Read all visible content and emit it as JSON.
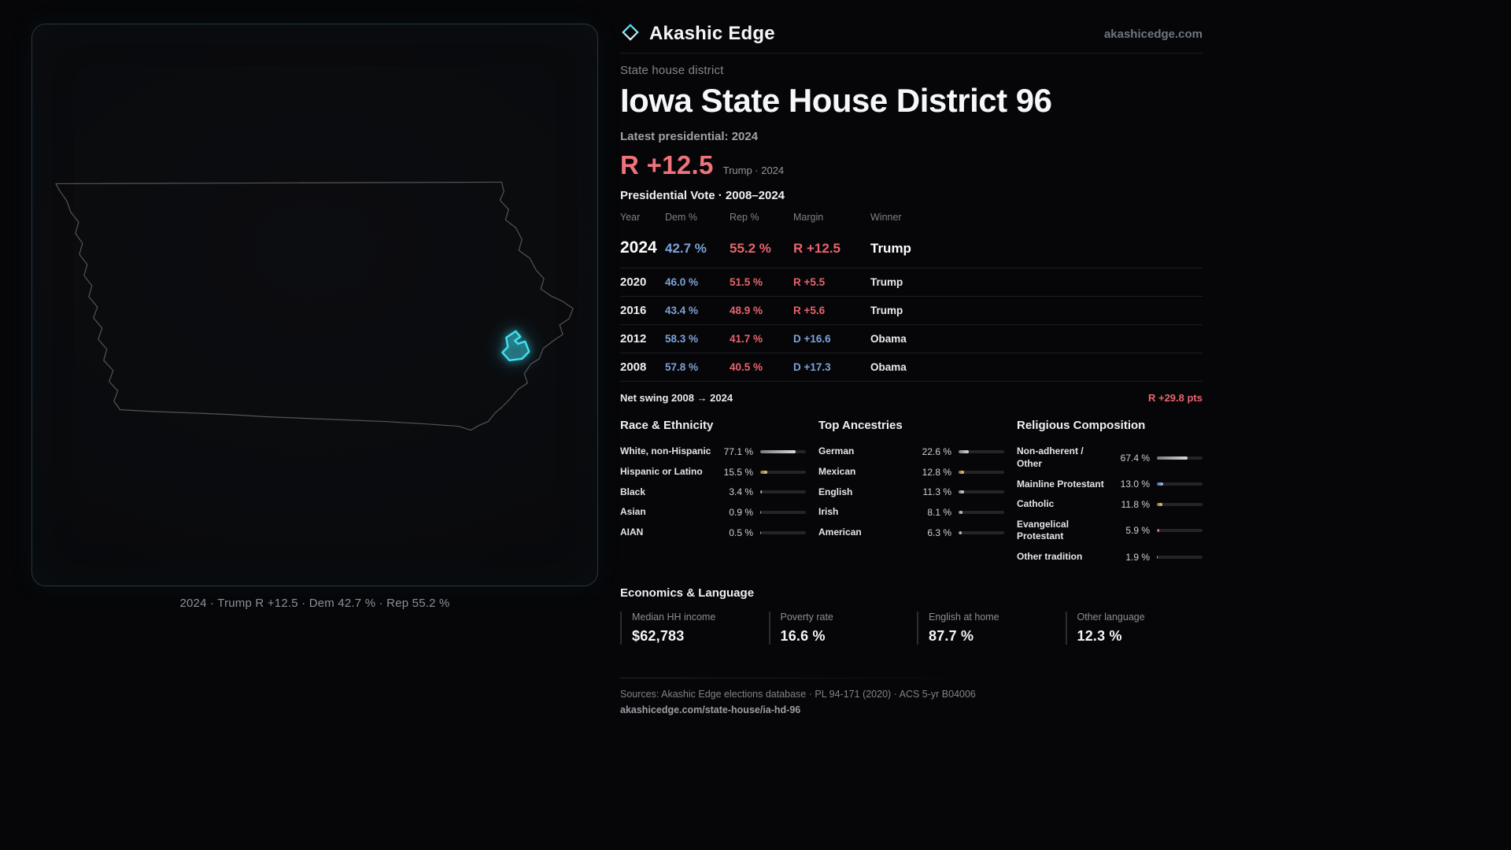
{
  "brand": {
    "name": "Akashic Edge",
    "site": "akashicedge.com",
    "logo_icon": "diamond-outline-icon"
  },
  "map": {
    "region": "Iowa",
    "caption": "2024 · Trump R +12.5 · Dem 42.7 % · Rep 55.2 %",
    "highlight_color": "#3ee1f2"
  },
  "header": {
    "kicker": "State house district",
    "title": "Iowa State House District 96",
    "latest_label": "Latest presidential: 2024",
    "margin_big": "R +12.5",
    "margin_note": "Trump · 2024"
  },
  "table": {
    "title": "Presidential Vote · 2008–2024",
    "columns": [
      "Year",
      "Dem %",
      "Rep %",
      "Margin",
      "Winner"
    ],
    "rows": [
      {
        "year": "2024",
        "dem": "42.7 %",
        "rep": "55.2 %",
        "margin": "R +12.5",
        "winner": "Trump",
        "lean": "R"
      },
      {
        "year": "2020",
        "dem": "46.0 %",
        "rep": "51.5 %",
        "margin": "R +5.5",
        "winner": "Trump",
        "lean": "R"
      },
      {
        "year": "2016",
        "dem": "43.4 %",
        "rep": "48.9 %",
        "margin": "R +5.6",
        "winner": "Trump",
        "lean": "R"
      },
      {
        "year": "2012",
        "dem": "58.3 %",
        "rep": "41.7 %",
        "margin": "D +16.6",
        "winner": "Obama",
        "lean": "D"
      },
      {
        "year": "2008",
        "dem": "57.8 %",
        "rep": "40.5 %",
        "margin": "D +17.3",
        "winner": "Obama",
        "lean": "D"
      }
    ]
  },
  "net_swing": {
    "label": "Net swing 2008 → 2024",
    "value": "R +29.8 pts"
  },
  "demographics": [
    {
      "title": "Race & Ethnicity",
      "items": [
        {
          "label": "White, non-Hispanic",
          "value": "77.1 %",
          "pct": 77.1,
          "color": "#c4c6cd"
        },
        {
          "label": "Hispanic or Latino",
          "value": "15.5 %",
          "pct": 15.5,
          "color": "#e3b341"
        },
        {
          "label": "Black",
          "value": "3.4 %",
          "pct": 3.4,
          "color": "#c4c6cd"
        },
        {
          "label": "Asian",
          "value": "0.9 %",
          "pct": 0.9,
          "color": "#c4c6cd"
        },
        {
          "label": "AIAN",
          "value": "0.5 %",
          "pct": 0.5,
          "color": "#c4c6cd"
        }
      ]
    },
    {
      "title": "Top Ancestries",
      "items": [
        {
          "label": "German",
          "value": "22.6 %",
          "pct": 22.6,
          "color": "#c4c6cd"
        },
        {
          "label": "Mexican",
          "value": "12.8 %",
          "pct": 12.8,
          "color": "#e3b341"
        },
        {
          "label": "English",
          "value": "11.3 %",
          "pct": 11.3,
          "color": "#c4c6cd"
        },
        {
          "label": "Irish",
          "value": "8.1 %",
          "pct": 8.1,
          "color": "#c4c6cd"
        },
        {
          "label": "American",
          "value": "6.3 %",
          "pct": 6.3,
          "color": "#c4c6cd"
        }
      ]
    },
    {
      "title": "Religious Composition",
      "items": [
        {
          "label": "Non-adherent / Other",
          "value": "67.4 %",
          "pct": 67.4,
          "color": "#c4c6cd"
        },
        {
          "label": "Mainline Protestant",
          "value": "13.0 %",
          "pct": 13.0,
          "color": "#6fa8ef"
        },
        {
          "label": "Catholic",
          "value": "11.8 %",
          "pct": 11.8,
          "color": "#e3b341"
        },
        {
          "label": "Evangelical Protestant",
          "value": "5.9 %",
          "pct": 5.9,
          "color": "#e86a6a"
        },
        {
          "label": "Other tradition",
          "value": "1.9 %",
          "pct": 1.9,
          "color": "#c4c6cd"
        }
      ]
    }
  ],
  "economics": {
    "title": "Economics & Language",
    "stats": [
      {
        "label": "Median HH income",
        "value": "$62,783"
      },
      {
        "label": "Poverty rate",
        "value": "16.6 %"
      },
      {
        "label": "English at home",
        "value": "87.7 %"
      },
      {
        "label": "Other language",
        "value": "12.3 %"
      }
    ]
  },
  "footer": {
    "sources": "Sources: Akashic Edge elections database · PL 94-171 (2020) · ACS 5-yr B04006",
    "permalink": "akashicedge.com/state-house/ia-hd-96"
  },
  "colors": {
    "dem": "#7da2d9",
    "rep": "#e8646e",
    "accent": "#3ee1f2",
    "amber": "#e3b341",
    "blue": "#6fa8ef",
    "red": "#e86a6a",
    "bar_gray": "#c4c6cd"
  },
  "chart_data": [
    {
      "type": "table",
      "title": "Presidential Vote · 2008–2024",
      "columns": [
        "Year",
        "Dem %",
        "Rep %",
        "Margin",
        "Winner"
      ],
      "rows": [
        [
          2024,
          42.7,
          55.2,
          "R +12.5",
          "Trump"
        ],
        [
          2020,
          46.0,
          51.5,
          "R +5.5",
          "Trump"
        ],
        [
          2016,
          43.4,
          48.9,
          "R +5.6",
          "Trump"
        ],
        [
          2012,
          58.3,
          41.7,
          "D +16.6",
          "Obama"
        ],
        [
          2008,
          57.8,
          40.5,
          "D +17.3",
          "Obama"
        ]
      ],
      "annotations": [
        "Net swing 2008 → 2024: R +29.8 pts"
      ]
    },
    {
      "type": "bar",
      "orientation": "horizontal",
      "title": "Race & Ethnicity",
      "unit": "%",
      "xlim": [
        0,
        100
      ],
      "categories": [
        "White, non-Hispanic",
        "Hispanic or Latino",
        "Black",
        "Asian",
        "AIAN"
      ],
      "values": [
        77.1,
        15.5,
        3.4,
        0.9,
        0.5
      ]
    },
    {
      "type": "bar",
      "orientation": "horizontal",
      "title": "Top Ancestries",
      "unit": "%",
      "xlim": [
        0,
        100
      ],
      "categories": [
        "German",
        "Mexican",
        "English",
        "Irish",
        "American"
      ],
      "values": [
        22.6,
        12.8,
        11.3,
        8.1,
        6.3
      ]
    },
    {
      "type": "bar",
      "orientation": "horizontal",
      "title": "Religious Composition",
      "unit": "%",
      "xlim": [
        0,
        100
      ],
      "categories": [
        "Non-adherent / Other",
        "Mainline Protestant",
        "Catholic",
        "Evangelical Protestant",
        "Other tradition"
      ],
      "values": [
        67.4,
        13.0,
        11.8,
        5.9,
        1.9
      ]
    }
  ]
}
